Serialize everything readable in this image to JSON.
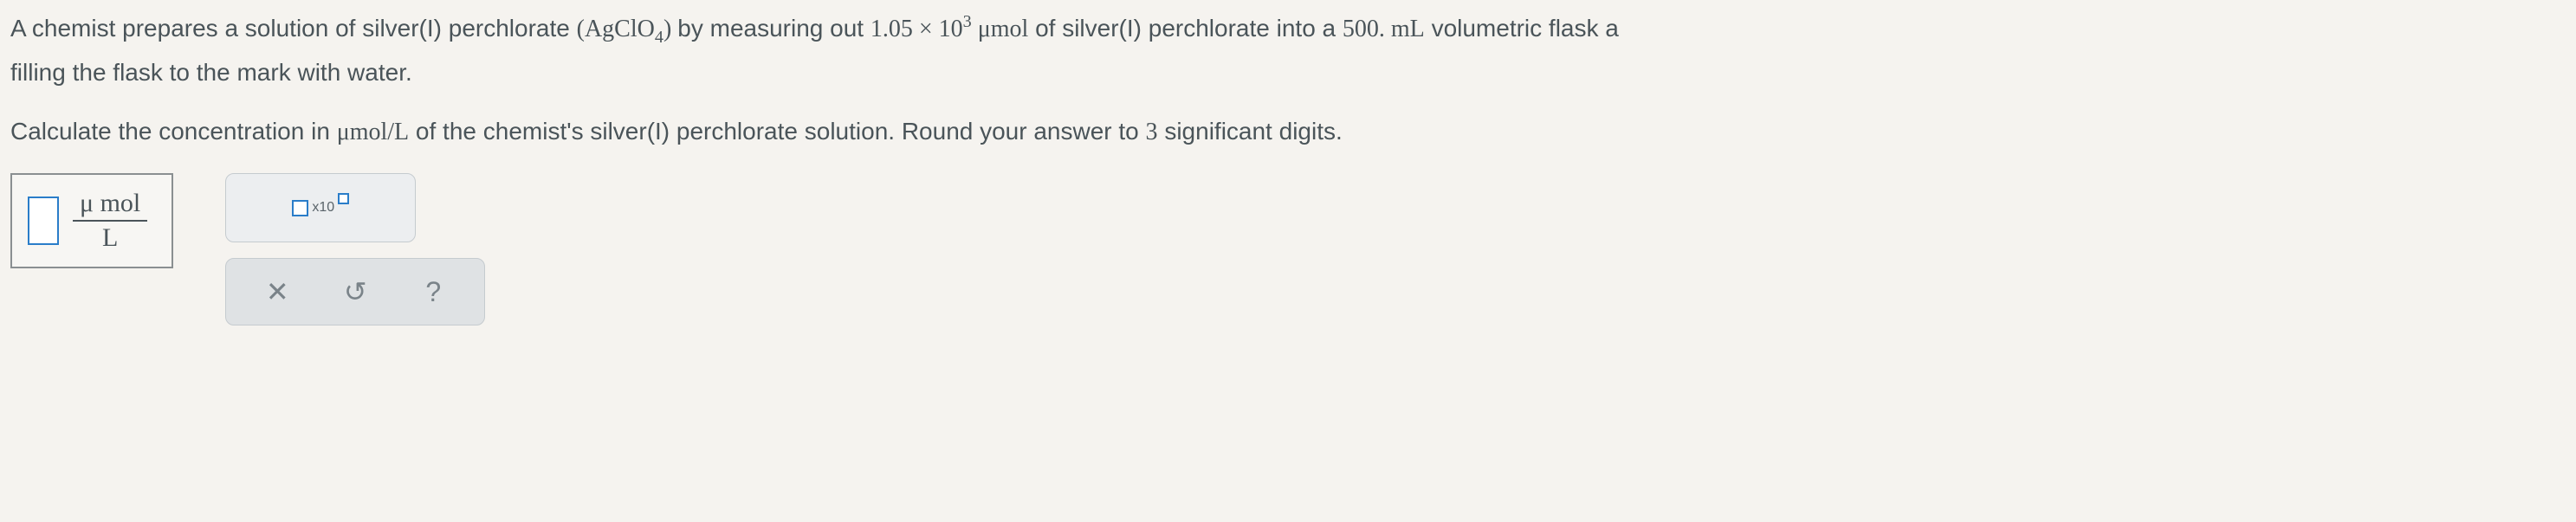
{
  "problem": {
    "line1_pre": "A chemist prepares a solution of silver(I) perchlorate ",
    "formula": {
      "open": "(",
      "base": "AgClO",
      "sub": "4",
      "close": ")"
    },
    "line1_mid": " by measuring out ",
    "amount_base": "1.05 × 10",
    "amount_exp": "3",
    "amount_unit": " μmol",
    "line1_post": " of silver(I) perchlorate into a ",
    "volume": "500. mL",
    "line1_end": " volumetric flask a",
    "line2": "filling the flask to the mark with water.",
    "prompt_pre": "Calculate the concentration in ",
    "prompt_unit": "μmol/L",
    "prompt_mid": " of the chemist's silver(I) perchlorate solution. Round your answer to ",
    "sigfigs": "3",
    "prompt_end": " significant digits."
  },
  "answer": {
    "unit_num": "μ mol",
    "unit_den": "L"
  },
  "tools": {
    "sci_x10": "x10",
    "clear_symbol": "✕",
    "reset_symbol": "↺",
    "help_symbol": "?"
  },
  "colors": {
    "background": "#f5f3ef",
    "text": "#4a5459",
    "input_border": "#2a7dc9",
    "panel_bg": "#eceef0",
    "action_bg": "#dfe2e4",
    "border": "#c5cbcf"
  }
}
